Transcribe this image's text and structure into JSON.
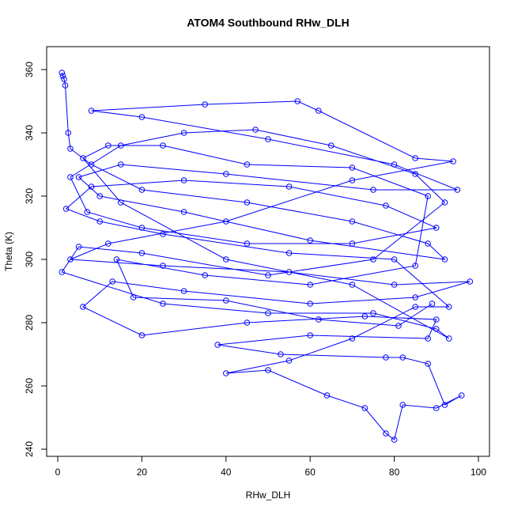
{
  "chart_data": {
    "type": "line",
    "title": "ATOM4 Southbound RHw_DLH",
    "x_label": "RHw_DLH",
    "y_label": "Theta (K)",
    "color": "#0000ff",
    "markers": true,
    "grid": false,
    "xlim": [
      -2.63,
      102.63
    ],
    "ylim": [
      237.75,
      367.25
    ],
    "xticks": [
      0,
      20,
      40,
      60,
      80,
      100
    ],
    "yticks": [
      240,
      260,
      280,
      300,
      320,
      340,
      360
    ],
    "x": [
      1,
      1.2,
      1.5,
      1.8,
      2.5,
      3,
      8,
      20,
      45,
      70,
      88,
      92,
      60,
      30,
      10,
      5,
      15,
      40,
      75,
      95,
      80,
      50,
      20,
      8,
      35,
      57,
      62,
      85,
      94,
      70,
      40,
      12,
      3,
      25,
      55,
      80,
      98,
      85,
      60,
      30,
      13,
      6,
      20,
      45,
      73,
      90,
      88,
      60,
      38,
      53,
      78,
      82,
      88,
      92,
      96,
      90,
      82,
      80,
      78,
      73,
      64,
      50,
      40,
      55,
      70,
      85,
      93,
      80,
      55,
      25,
      10,
      2,
      8,
      30,
      55,
      78,
      90,
      70,
      45,
      20,
      7,
      3,
      15,
      30,
      47,
      65,
      85,
      92,
      75,
      50,
      20,
      5,
      1,
      25,
      50,
      75,
      90,
      93,
      70,
      40,
      15,
      6,
      12,
      25,
      45,
      70,
      88,
      85,
      60,
      35,
      14,
      18,
      40,
      62,
      81,
      89
    ],
    "values": [
      359,
      358,
      357,
      355,
      340,
      335,
      330,
      322,
      318,
      312,
      305,
      300,
      306,
      315,
      320,
      326,
      330,
      327,
      322,
      322,
      330,
      338,
      345,
      347,
      349,
      350,
      347,
      332,
      331,
      325,
      312,
      305,
      300,
      298,
      296,
      292,
      293,
      288,
      286,
      290,
      293,
      285,
      276,
      280,
      282,
      281,
      275,
      276,
      273,
      270,
      269,
      269,
      267,
      254,
      257,
      253,
      254,
      243,
      245,
      253,
      257,
      265,
      264,
      268,
      275,
      285,
      285,
      300,
      302,
      308,
      312,
      316,
      323,
      325,
      323,
      317,
      310,
      305,
      305,
      310,
      315,
      326,
      336,
      340,
      341,
      336,
      327,
      318,
      300,
      295,
      302,
      304,
      296,
      286,
      283,
      283,
      278,
      275,
      292,
      300,
      318,
      332,
      336,
      336,
      330,
      329,
      320,
      298,
      292,
      295,
      300,
      288,
      287,
      281,
      279,
      286
    ]
  }
}
